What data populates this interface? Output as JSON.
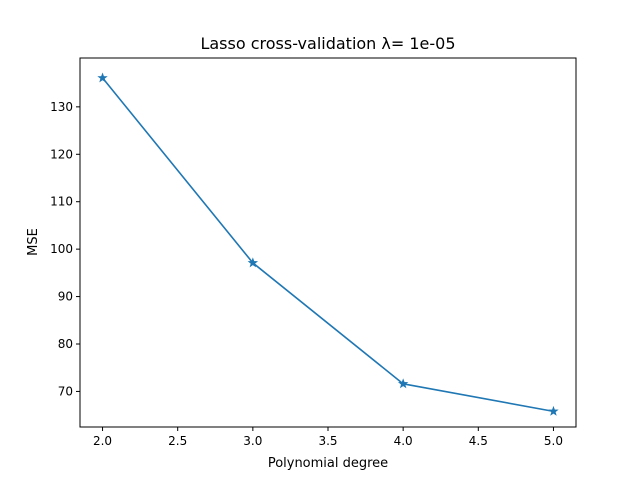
{
  "chart_data": {
    "type": "line",
    "title": "Lasso cross-validation λ= 1e-05",
    "xlabel": "Polynomial degree",
    "ylabel": "MSE",
    "xlim": [
      1.85,
      5.15
    ],
    "ylim": [
      62.5,
      140.3
    ],
    "xticks": [
      "2.0",
      "2.5",
      "3.0",
      "3.5",
      "4.0",
      "4.5",
      "5.0"
    ],
    "yticks": [
      "70",
      "80",
      "90",
      "100",
      "110",
      "120",
      "130"
    ],
    "grid": false,
    "series": [
      {
        "color": "#1f77b4",
        "marker": "star",
        "x": [
          2,
          3,
          4,
          5
        ],
        "y": [
          136.1,
          97.1,
          71.6,
          65.8
        ]
      }
    ]
  }
}
